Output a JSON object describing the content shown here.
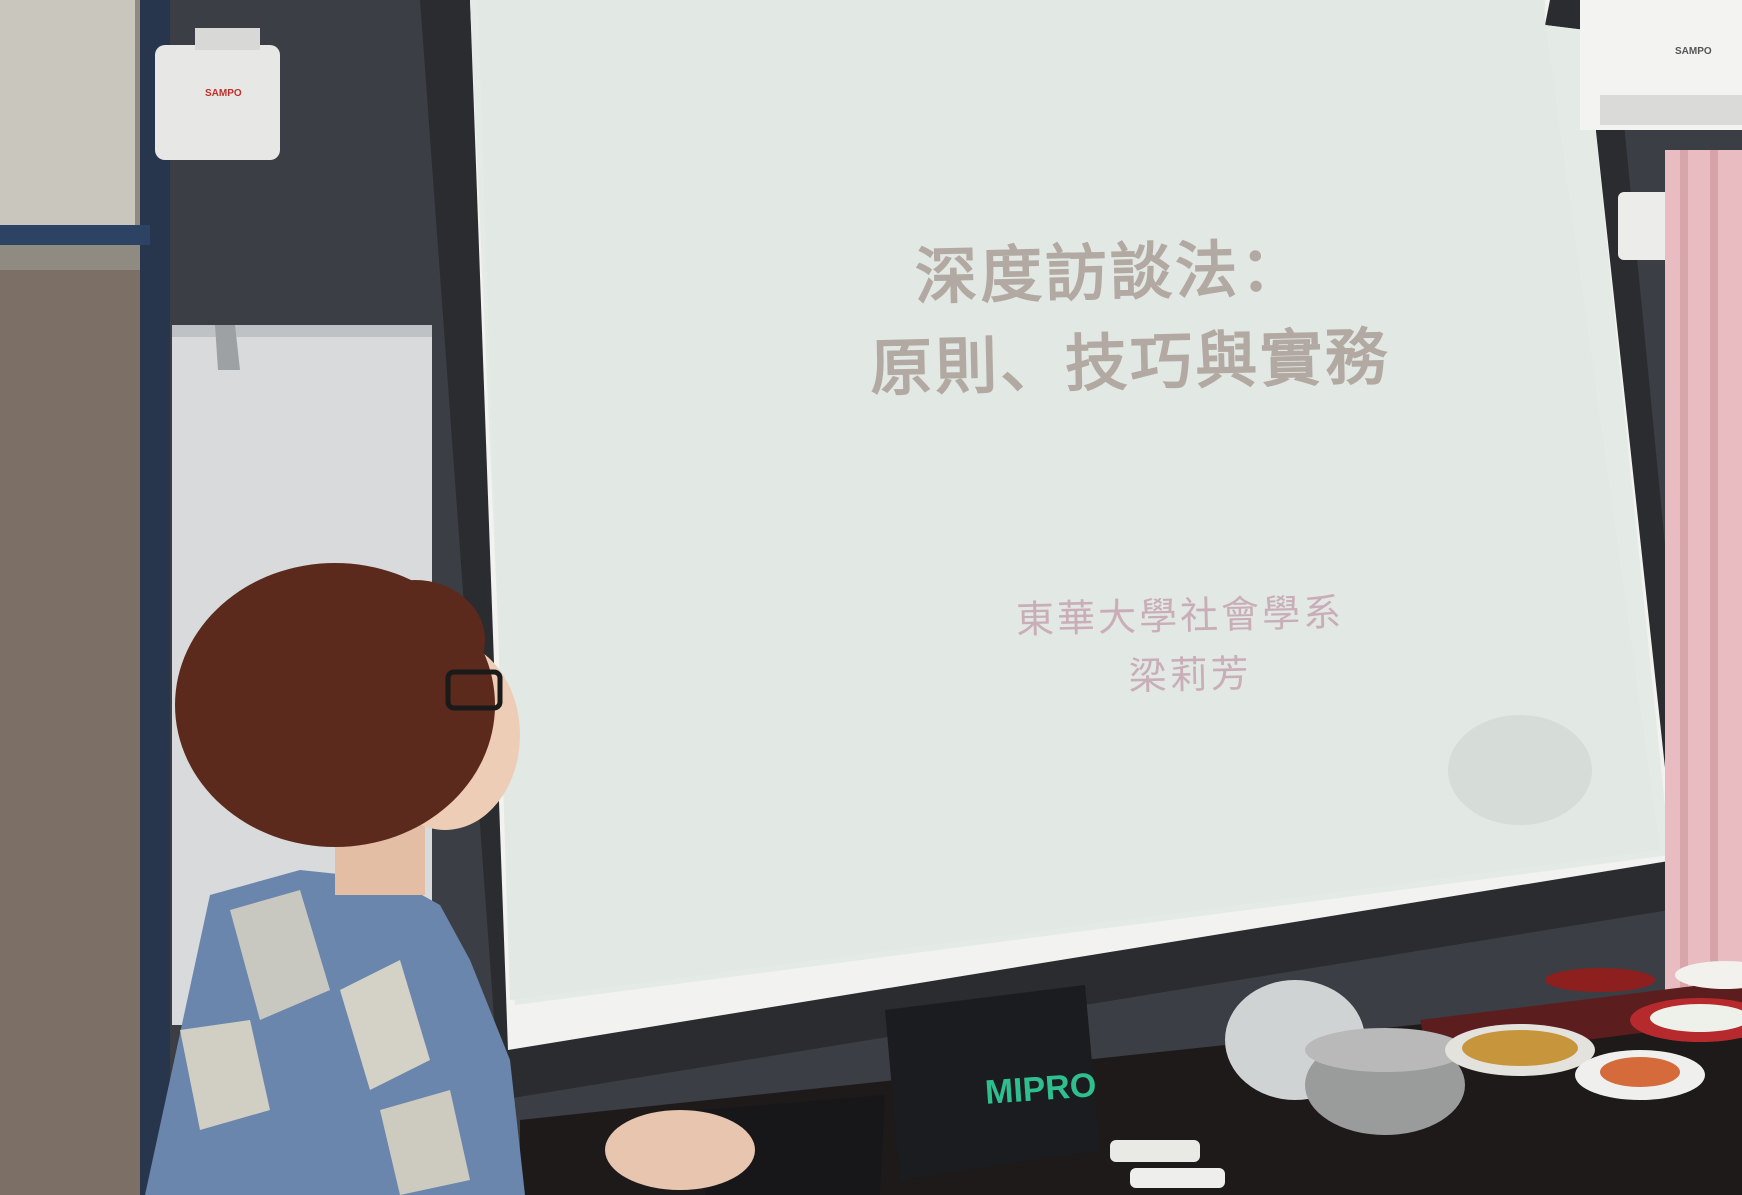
{
  "slide": {
    "title_line1": "深度訪談法：",
    "title_line2": "原則、技巧與實務",
    "organization": "東華大學社會學系",
    "author": "梁莉芳"
  },
  "objects": {
    "bag_brand": "MIPRO",
    "speaker_brand": "SAMPO",
    "ac_brand": "SAMPO"
  },
  "colors": {
    "screen": "#e4eae5",
    "wall": "#3a3d42",
    "title_text": "#b3a9a3",
    "subtitle_text": "#c9aeb8",
    "shirt_blue": "#5d7fa8",
    "hair": "#5b2a1c",
    "curtain": "#e8bcc0"
  }
}
